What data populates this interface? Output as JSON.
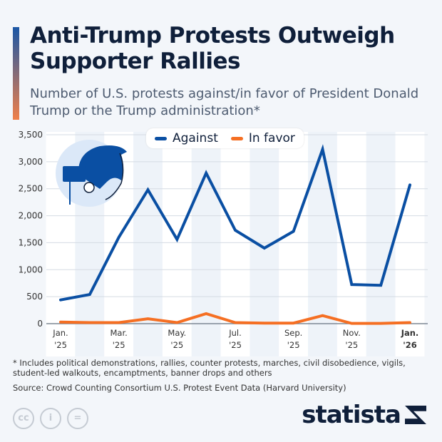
{
  "title": "Anti-Trump Protests Outweigh Supporter Rallies",
  "subtitle": "Number of U.S. protests against/in favor of President Donald Trump or the Trump administration*",
  "footnote": "* Includes political demonstrations, rallies, counter protests, marches, civil disobedience, vigils, student-led walkouts, encamptments, banner drops and others",
  "source": "Source: Crowd Counting Consortium U.S. Protest Event Data (Harvard University)",
  "brand": "statista",
  "license_icons": [
    "cc-icon",
    "attribution-icon",
    "no-derivatives-icon"
  ],
  "chart_data": {
    "type": "line",
    "x": [
      "Jan. '25",
      "Feb. '25",
      "Mar. '25",
      "Apr. '25",
      "May. '25",
      "Jun. '25",
      "Jul. '25",
      "Aug. '25",
      "Sep. '25",
      "Oct. '25",
      "Nov. '25",
      "Dec. '25",
      "Jan. '26"
    ],
    "xtick_labels": [
      [
        "Jan.",
        "'25"
      ],
      [
        "Mar.",
        "'25"
      ],
      [
        "May.",
        "'25"
      ],
      [
        "Jul.",
        "'25"
      ],
      [
        "Sep.",
        "'25"
      ],
      [
        "Nov.",
        "'25"
      ],
      [
        "Jan.",
        "'26"
      ]
    ],
    "xtick_index": [
      0,
      2,
      4,
      6,
      8,
      10,
      12
    ],
    "yticks": [
      "0",
      "500",
      "1,000",
      "1,500",
      "2,000",
      "2,500",
      "3,000",
      "3,500"
    ],
    "ylim": [
      0,
      3500
    ],
    "grid": true,
    "legend": "top-center",
    "series": [
      {
        "name": "Against",
        "color": "#0a4fa3",
        "values": [
          440,
          540,
          1600,
          2480,
          1560,
          2790,
          1730,
          1400,
          1710,
          3230,
          725,
          710,
          2570
        ]
      },
      {
        "name": "In favor",
        "color": "#f56f23",
        "values": [
          30,
          20,
          20,
          90,
          20,
          185,
          20,
          10,
          10,
          150,
          5,
          5,
          20
        ]
      }
    ]
  }
}
